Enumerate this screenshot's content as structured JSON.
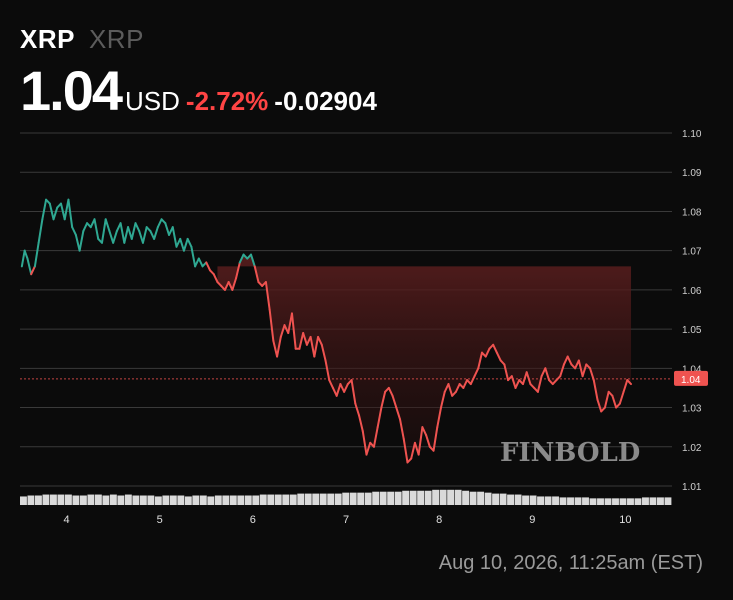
{
  "header": {
    "symbol": "XRP",
    "symbol_sub": "XRP",
    "price": "1.04",
    "currency": "USD",
    "change_pct": "-2.72%",
    "change_abs": "-0.02904"
  },
  "timestamp": "Aug 10, 2026, 11:25am (EST)",
  "watermark": "FINBOLD",
  "colors": {
    "background": "#0b0b0b",
    "up": "#2fa892",
    "down": "#ef5350",
    "grid": "#3a3a3a",
    "volume": "#e6e6e6",
    "change_text": "#ff4444"
  },
  "chart_data": {
    "type": "line",
    "x_ticks": [
      "4",
      "5",
      "6",
      "7",
      "8",
      "9",
      "10"
    ],
    "y_ticks": [
      "1.10",
      "1.09",
      "1.08",
      "1.07",
      "1.06",
      "1.05",
      "1.04",
      "1.03",
      "1.02",
      "1.01"
    ],
    "ylim": [
      1.0,
      1.1
    ],
    "xlim": [
      3.5,
      10.5
    ],
    "current_value": 1.0373,
    "current_label": "1.04",
    "series": [
      {
        "values": [
          [
            3.52,
            1.066
          ],
          [
            3.55,
            1.07
          ],
          [
            3.58,
            1.068
          ],
          [
            3.62,
            1.064
          ],
          [
            3.66,
            1.066
          ],
          [
            3.7,
            1.072
          ],
          [
            3.74,
            1.078
          ],
          [
            3.78,
            1.083
          ],
          [
            3.82,
            1.082
          ],
          [
            3.86,
            1.078
          ],
          [
            3.9,
            1.081
          ],
          [
            3.94,
            1.082
          ],
          [
            3.98,
            1.078
          ],
          [
            4.02,
            1.083
          ],
          [
            4.06,
            1.076
          ],
          [
            4.1,
            1.074
          ],
          [
            4.14,
            1.07
          ],
          [
            4.18,
            1.075
          ],
          [
            4.22,
            1.077
          ],
          [
            4.26,
            1.076
          ],
          [
            4.3,
            1.078
          ],
          [
            4.34,
            1.073
          ],
          [
            4.38,
            1.072
          ],
          [
            4.42,
            1.078
          ],
          [
            4.46,
            1.075
          ],
          [
            4.5,
            1.072
          ],
          [
            4.54,
            1.075
          ],
          [
            4.58,
            1.077
          ],
          [
            4.62,
            1.072
          ],
          [
            4.66,
            1.076
          ],
          [
            4.7,
            1.073
          ],
          [
            4.74,
            1.077
          ],
          [
            4.78,
            1.075
          ],
          [
            4.82,
            1.072
          ],
          [
            4.86,
            1.076
          ],
          [
            4.9,
            1.075
          ],
          [
            4.94,
            1.073
          ],
          [
            4.98,
            1.076
          ],
          [
            5.02,
            1.078
          ],
          [
            5.06,
            1.077
          ],
          [
            5.1,
            1.074
          ],
          [
            5.14,
            1.076
          ],
          [
            5.18,
            1.071
          ],
          [
            5.22,
            1.073
          ],
          [
            5.26,
            1.07
          ],
          [
            5.3,
            1.073
          ],
          [
            5.34,
            1.071
          ],
          [
            5.38,
            1.066
          ],
          [
            5.42,
            1.068
          ],
          [
            5.46,
            1.066
          ],
          [
            5.5,
            1.067
          ],
          [
            5.54,
            1.065
          ],
          [
            5.58,
            1.064
          ],
          [
            5.62,
            1.062
          ],
          [
            5.66,
            1.061
          ],
          [
            5.7,
            1.06
          ],
          [
            5.74,
            1.062
          ],
          [
            5.78,
            1.06
          ],
          [
            5.82,
            1.063
          ],
          [
            5.86,
            1.067
          ],
          [
            5.9,
            1.069
          ],
          [
            5.94,
            1.068
          ],
          [
            5.98,
            1.069
          ],
          [
            6.02,
            1.066
          ],
          [
            6.06,
            1.062
          ],
          [
            6.1,
            1.061
          ],
          [
            6.14,
            1.062
          ],
          [
            6.18,
            1.055
          ],
          [
            6.22,
            1.047
          ],
          [
            6.26,
            1.043
          ],
          [
            6.3,
            1.048
          ],
          [
            6.34,
            1.051
          ],
          [
            6.38,
            1.049
          ],
          [
            6.42,
            1.054
          ],
          [
            6.46,
            1.045
          ],
          [
            6.5,
            1.045
          ],
          [
            6.54,
            1.049
          ],
          [
            6.58,
            1.046
          ],
          [
            6.62,
            1.048
          ],
          [
            6.66,
            1.043
          ],
          [
            6.7,
            1.048
          ],
          [
            6.74,
            1.046
          ],
          [
            6.78,
            1.042
          ],
          [
            6.82,
            1.037
          ],
          [
            6.86,
            1.035
          ],
          [
            6.9,
            1.033
          ],
          [
            6.94,
            1.036
          ],
          [
            6.98,
            1.034
          ],
          [
            7.02,
            1.036
          ],
          [
            7.06,
            1.037
          ],
          [
            7.1,
            1.031
          ],
          [
            7.14,
            1.028
          ],
          [
            7.18,
            1.024
          ],
          [
            7.22,
            1.018
          ],
          [
            7.26,
            1.021
          ],
          [
            7.3,
            1.02
          ],
          [
            7.34,
            1.025
          ],
          [
            7.38,
            1.03
          ],
          [
            7.42,
            1.034
          ],
          [
            7.46,
            1.035
          ],
          [
            7.5,
            1.033
          ],
          [
            7.54,
            1.03
          ],
          [
            7.58,
            1.027
          ],
          [
            7.62,
            1.022
          ],
          [
            7.66,
            1.016
          ],
          [
            7.7,
            1.017
          ],
          [
            7.74,
            1.021
          ],
          [
            7.78,
            1.018
          ],
          [
            7.82,
            1.025
          ],
          [
            7.86,
            1.023
          ],
          [
            7.9,
            1.02
          ],
          [
            7.94,
            1.019
          ],
          [
            7.98,
            1.025
          ],
          [
            8.02,
            1.03
          ],
          [
            8.06,
            1.034
          ],
          [
            8.1,
            1.036
          ],
          [
            8.14,
            1.033
          ],
          [
            8.18,
            1.034
          ],
          [
            8.22,
            1.036
          ],
          [
            8.26,
            1.035
          ],
          [
            8.3,
            1.037
          ],
          [
            8.34,
            1.036
          ],
          [
            8.38,
            1.038
          ],
          [
            8.42,
            1.04
          ],
          [
            8.46,
            1.044
          ],
          [
            8.5,
            1.043
          ],
          [
            8.54,
            1.045
          ],
          [
            8.58,
            1.046
          ],
          [
            8.62,
            1.044
          ],
          [
            8.66,
            1.042
          ],
          [
            8.7,
            1.041
          ],
          [
            8.74,
            1.037
          ],
          [
            8.78,
            1.038
          ],
          [
            8.82,
            1.035
          ],
          [
            8.86,
            1.037
          ],
          [
            8.9,
            1.036
          ],
          [
            8.94,
            1.039
          ],
          [
            8.98,
            1.036
          ],
          [
            9.02,
            1.035
          ],
          [
            9.06,
            1.034
          ],
          [
            9.1,
            1.038
          ],
          [
            9.14,
            1.04
          ],
          [
            9.18,
            1.037
          ],
          [
            9.22,
            1.036
          ],
          [
            9.26,
            1.037
          ],
          [
            9.3,
            1.038
          ],
          [
            9.34,
            1.041
          ],
          [
            9.38,
            1.043
          ],
          [
            9.42,
            1.041
          ],
          [
            9.46,
            1.04
          ],
          [
            9.5,
            1.042
          ],
          [
            9.54,
            1.038
          ],
          [
            9.58,
            1.041
          ],
          [
            9.62,
            1.04
          ],
          [
            9.66,
            1.037
          ],
          [
            9.7,
            1.032
          ],
          [
            9.74,
            1.029
          ],
          [
            9.78,
            1.03
          ],
          [
            9.82,
            1.034
          ],
          [
            9.86,
            1.033
          ],
          [
            9.9,
            1.03
          ],
          [
            9.94,
            1.031
          ],
          [
            9.98,
            1.034
          ],
          [
            10.02,
            1.037
          ],
          [
            10.06,
            1.036
          ]
        ]
      }
    ],
    "volume": [
      9,
      10,
      10,
      11,
      11,
      11,
      11,
      10,
      10,
      11,
      11,
      10,
      11,
      10,
      11,
      10,
      10,
      10,
      9,
      10,
      10,
      10,
      9,
      10,
      10,
      9,
      10,
      10,
      10,
      10,
      10,
      10,
      11,
      11,
      11,
      11,
      11,
      12,
      12,
      12,
      12,
      12,
      12,
      13,
      13,
      13,
      13,
      14,
      14,
      14,
      14,
      15,
      15,
      15,
      15,
      16,
      16,
      16,
      16,
      15,
      14,
      14,
      13,
      12,
      12,
      11,
      11,
      10,
      10,
      9,
      9,
      9,
      8,
      8,
      8,
      8,
      7,
      7,
      7,
      7,
      7,
      7,
      7,
      8,
      8,
      8,
      8
    ]
  }
}
